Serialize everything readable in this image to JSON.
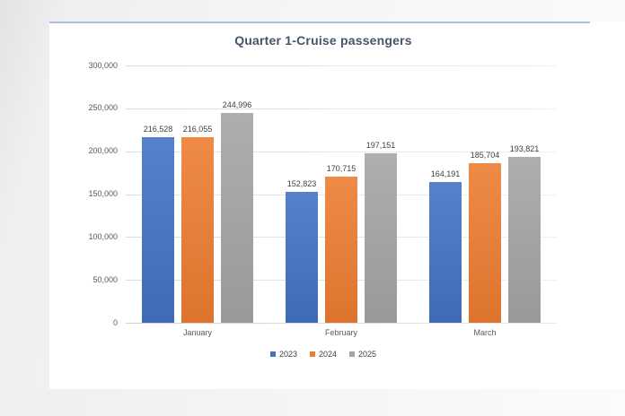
{
  "window": {
    "panel_topline_color": "#a9c2e0"
  },
  "chart_data": {
    "type": "bar",
    "title": "Quarter 1-Cruise passengers",
    "title_color": "#44546A",
    "xlabel": "",
    "ylabel": "",
    "categories": [
      "January",
      "February",
      "March"
    ],
    "series": [
      {
        "name": "2023",
        "color": "#4472C4",
        "values": [
          216528,
          152823,
          164191
        ]
      },
      {
        "name": "2024",
        "color": "#ED7D31",
        "values": [
          216055,
          170715,
          185704
        ]
      },
      {
        "name": "2025",
        "color": "#A5A5A5",
        "values": [
          244996,
          197151,
          193821
        ]
      }
    ],
    "data_labels": [
      [
        "216,528",
        "216,055",
        "244,996"
      ],
      [
        "152,823",
        "170,715",
        "197,151"
      ],
      [
        "164,191",
        "185,704",
        "193,821"
      ]
    ],
    "ylim": [
      0,
      300000
    ],
    "ytick_interval": 50000,
    "yticks": [
      {
        "value": 300000,
        "label": "300,000"
      },
      {
        "value": 250000,
        "label": "250,000"
      },
      {
        "value": 200000,
        "label": "200,000"
      },
      {
        "value": 150000,
        "label": "150,000"
      },
      {
        "value": 100000,
        "label": "100,000"
      },
      {
        "value": 50000,
        "label": "50,000"
      },
      {
        "value": 0,
        "label": "0"
      }
    ],
    "grid": true,
    "legend_position": "bottom"
  }
}
